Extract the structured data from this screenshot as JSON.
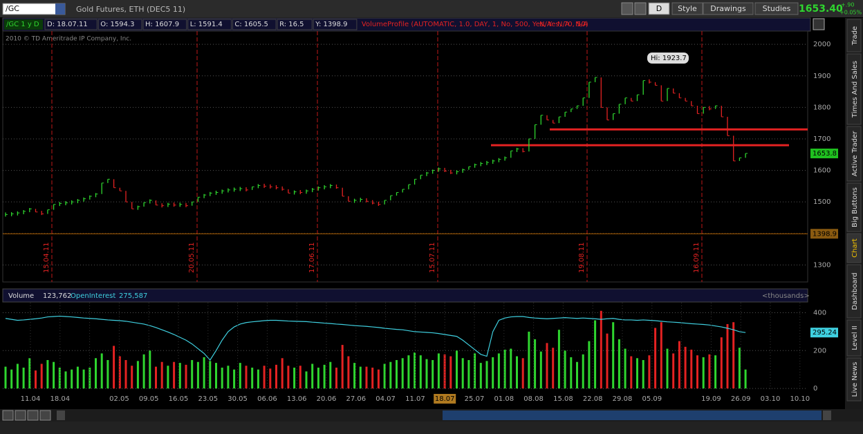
{
  "header": {
    "symbol": "/GC",
    "description": "Gold Futures, ETH (DEC5 11)",
    "buttons": [
      "D",
      "Style",
      "Drawings",
      "Studies"
    ],
    "last": "1653.40",
    "change": "+.90",
    "change_pct": "+0.05%"
  },
  "info_bar": {
    "label": "/GC 1 y D",
    "fields": [
      "D: 18.07.11",
      "O: 1594.3",
      "H: 1607.9",
      "L: 1591.4",
      "C: 1605.5",
      "R: 16.5",
      "Y: 1398.9"
    ],
    "study": "VolumeProfile (AUTOMATIC, 1.0, DAY, 1, No, 500, Yes, Yes, 70, 50)",
    "na": [
      "N/A",
      "N/A",
      "N/A"
    ]
  },
  "copyright": "2010 © TD Ameritrade IP Company, Inc.",
  "price_chart": {
    "ylim": [
      1246,
      2042
    ],
    "yticks": [
      1300,
      1400,
      1500,
      1600,
      1700,
      1800,
      1900,
      2000
    ],
    "closes": [
      1460,
      1462,
      1465,
      1470,
      1478,
      1468,
      1462,
      1475,
      1492,
      1495,
      1497,
      1500,
      1505,
      1510,
      1518,
      1525,
      1560,
      1572,
      1545,
      1535,
      1500,
      1478,
      1485,
      1498,
      1505,
      1490,
      1488,
      1493,
      1490,
      1492,
      1488,
      1500,
      1515,
      1522,
      1528,
      1530,
      1535,
      1538,
      1540,
      1542,
      1538,
      1548,
      1552,
      1550,
      1548,
      1545,
      1540,
      1528,
      1532,
      1530,
      1535,
      1540,
      1545,
      1548,
      1552,
      1545,
      1518,
      1502,
      1505,
      1508,
      1502,
      1496,
      1492,
      1505,
      1520,
      1530,
      1540,
      1555,
      1572,
      1585,
      1592,
      1600,
      1605,
      1598,
      1592,
      1596,
      1602,
      1612,
      1618,
      1622,
      1625,
      1630,
      1635,
      1640,
      1662,
      1668,
      1660,
      1700,
      1745,
      1775,
      1760,
      1750,
      1770,
      1785,
      1795,
      1805,
      1830,
      1880,
      1895,
      1800,
      1760,
      1780,
      1810,
      1830,
      1820,
      1840,
      1885,
      1880,
      1870,
      1820,
      1860,
      1845,
      1830,
      1820,
      1805,
      1780,
      1800,
      1795,
      1805,
      1770,
      1710,
      1630,
      1640,
      1653.8
    ],
    "month_lines": [
      "15.04.11",
      "20.05.11",
      "17.06.11",
      "15.07.11",
      "19.08.11",
      "16.09.11"
    ],
    "hi_label": "Hi: 1923.7",
    "support_lines": [
      1730,
      1680
    ],
    "prev_close": 1398.9
  },
  "volume_panel": {
    "volume_label": "Volume",
    "volume_value": "123,762",
    "oi_label": "OpenInterest",
    "oi_value": "275,587",
    "units": "<thousands>",
    "ylim": [
      -7,
      453
    ],
    "yticks": [
      0,
      200,
      400
    ],
    "volume": [
      115,
      100,
      130,
      110,
      160,
      95,
      130,
      150,
      140,
      110,
      90,
      100,
      115,
      100,
      110,
      160,
      185,
      150,
      225,
      170,
      150,
      120,
      145,
      180,
      200,
      115,
      140,
      120,
      140,
      135,
      125,
      150,
      140,
      165,
      145,
      135,
      110,
      120,
      100,
      135,
      120,
      110,
      100,
      120,
      105,
      125,
      160,
      120,
      110,
      120,
      90,
      130,
      110,
      125,
      140,
      110,
      230,
      170,
      135,
      115,
      115,
      110,
      100,
      130,
      140,
      150,
      160,
      175,
      190,
      175,
      155,
      150,
      185,
      180,
      170,
      200,
      160,
      150,
      185,
      135,
      145,
      165,
      185,
      205,
      210,
      170,
      160,
      300,
      260,
      195,
      240,
      215,
      310,
      200,
      165,
      140,
      180,
      250,
      360,
      410,
      290,
      350,
      260,
      210,
      170,
      160,
      150,
      175,
      320,
      350,
      210,
      185,
      250,
      220,
      205,
      175,
      165,
      180,
      175,
      270,
      340,
      350,
      215,
      100
    ],
    "open_interest": [
      370,
      365,
      360,
      362,
      365,
      368,
      372,
      378,
      380,
      382,
      380,
      378,
      375,
      372,
      370,
      368,
      365,
      362,
      360,
      358,
      355,
      350,
      345,
      340,
      332,
      322,
      310,
      298,
      285,
      270,
      255,
      235,
      210,
      185,
      150,
      200,
      255,
      300,
      325,
      340,
      348,
      352,
      355,
      358,
      360,
      360,
      358,
      356,
      355,
      354,
      353,
      350,
      348,
      345,
      343,
      340,
      338,
      335,
      332,
      330,
      328,
      325,
      322,
      318,
      315,
      312,
      310,
      305,
      300,
      298,
      296,
      294,
      290,
      285,
      280,
      275,
      255,
      230,
      205,
      180,
      170,
      300,
      360,
      372,
      378,
      380,
      380,
      375,
      372,
      370,
      368,
      370,
      372,
      374,
      372,
      370,
      372,
      370,
      368,
      365,
      368,
      370,
      365,
      362,
      362,
      360,
      362,
      360,
      358,
      355,
      352,
      350,
      348,
      345,
      342,
      340,
      338,
      335,
      330,
      325,
      318,
      310,
      300,
      295.24
    ]
  },
  "x_axis": {
    "labels": [
      "11.04",
      "18.04",
      null,
      "02.05",
      "09.05",
      "16.05",
      "23.05",
      "30.05",
      "06.06",
      "13.06",
      "20.06",
      "27.06",
      "04.07",
      "11.07",
      "18.07",
      "25.07",
      "01.08",
      "08.08",
      "15.08",
      "22.08",
      "29.08",
      "05.09",
      null,
      "19.09",
      "26.09",
      "03.10",
      "10.10"
    ],
    "cursor_index": 14
  },
  "sidebar": {
    "tabs": [
      "Trade",
      "Times And Sales",
      "Active Trader",
      "Big Buttons",
      "Chart",
      "Dashboard",
      "Level II",
      "Live News"
    ],
    "active": 4
  }
}
